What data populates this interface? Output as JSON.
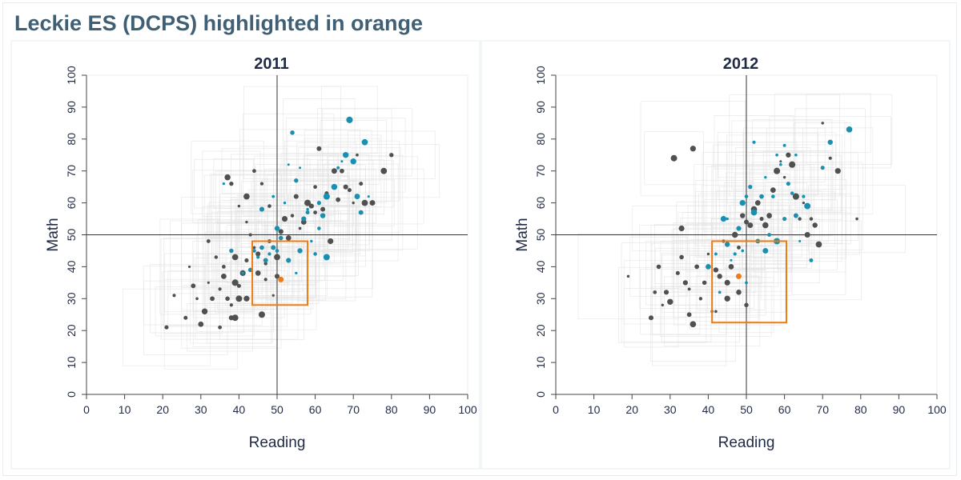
{
  "page": {
    "title": "Leckie ES (DCPS) highlighted in orange"
  },
  "colors": {
    "dcps": "#1a8fb0",
    "charter": "#505050",
    "highlight": "#f07b10",
    "box": "#e2e2e2"
  },
  "chart_data": [
    {
      "type": "scatter",
      "title": "2011",
      "xlabel": "Reading",
      "ylabel": "Math",
      "xlim": [
        0,
        100
      ],
      "ylim": [
        0,
        100
      ],
      "x_ticks": [
        "0",
        "10",
        "20",
        "30",
        "40",
        "50",
        "60",
        "70",
        "80",
        "90",
        "100"
      ],
      "y_ticks": [
        "0",
        "10",
        "20",
        "30",
        "40",
        "50",
        "60",
        "70",
        "80",
        "90",
        "100"
      ],
      "reference_lines": {
        "x": 50,
        "y": 50
      },
      "highlight": {
        "name": "Leckie ES",
        "x": 51,
        "y": 36,
        "x_range": [
          43.5,
          58
        ],
        "y_range": [
          28,
          48
        ]
      },
      "series": [
        {
          "points": [
            [
              21,
              21
            ],
            [
              23,
              31
            ],
            [
              26,
              24
            ],
            [
              27,
              40
            ],
            [
              29,
              30
            ],
            [
              30,
              22
            ],
            [
              31,
              26
            ],
            [
              32,
              35
            ],
            [
              33,
              30
            ],
            [
              34,
              43
            ],
            [
              35,
              21
            ],
            [
              35,
              33
            ],
            [
              36,
              37
            ],
            [
              37,
              30
            ],
            [
              38,
              28
            ],
            [
              38,
              24
            ],
            [
              39,
              43
            ],
            [
              39,
              24
            ],
            [
              40,
              34
            ],
            [
              40,
              30
            ],
            [
              41,
              38
            ],
            [
              42,
              42
            ],
            [
              42,
              54
            ],
            [
              43,
              50
            ],
            [
              44,
              46
            ],
            [
              45,
              38
            ],
            [
              45,
              44
            ],
            [
              46,
              25
            ],
            [
              47,
              41
            ],
            [
              48,
              48
            ],
            [
              48,
              59
            ],
            [
              49,
              46
            ],
            [
              50,
              43
            ],
            [
              51,
              51
            ],
            [
              52,
              55
            ],
            [
              53,
              49
            ],
            [
              54,
              56
            ],
            [
              55,
              62
            ],
            [
              56,
              52
            ],
            [
              57,
              54
            ],
            [
              58,
              60
            ],
            [
              59,
              59
            ],
            [
              60,
              65
            ],
            [
              60,
              57
            ],
            [
              61,
              77
            ],
            [
              62,
              58
            ],
            [
              62,
              56
            ],
            [
              63,
              63
            ],
            [
              64,
              48
            ],
            [
              65,
              70
            ],
            [
              66,
              61
            ],
            [
              67,
              70
            ],
            [
              68,
              65
            ],
            [
              69,
              64
            ],
            [
              70,
              60
            ],
            [
              71,
              75
            ],
            [
              72,
              66
            ],
            [
              73,
              60
            ],
            [
              75,
              60
            ],
            [
              78,
              70
            ],
            [
              80,
              75
            ],
            [
              37,
              68
            ],
            [
              38,
              66
            ],
            [
              40,
              59
            ],
            [
              42,
              62
            ],
            [
              44,
              70
            ],
            [
              46,
              66
            ],
            [
              47,
              36
            ],
            [
              49,
              31
            ],
            [
              32,
              48
            ],
            [
              36,
              40
            ],
            [
              39,
              35
            ],
            [
              42,
              30
            ],
            [
              50,
              37
            ],
            [
              28,
              34
            ]
          ]
        },
        {
          "points": [
            [
              36,
              66
            ],
            [
              38,
              45
            ],
            [
              41,
              38
            ],
            [
              43,
              39
            ],
            [
              44,
              45
            ],
            [
              45,
              43
            ],
            [
              46,
              46
            ],
            [
              47,
              42
            ],
            [
              48,
              44
            ],
            [
              49,
              46
            ],
            [
              50,
              52
            ],
            [
              51,
              49
            ],
            [
              52,
              60
            ],
            [
              53,
              72
            ],
            [
              54,
              82
            ],
            [
              55,
              67
            ],
            [
              56,
              71
            ],
            [
              57,
              55
            ],
            [
              58,
              58
            ],
            [
              59,
              48
            ],
            [
              60,
              44
            ],
            [
              61,
              60
            ],
            [
              62,
              56
            ],
            [
              63,
              62
            ],
            [
              65,
              65
            ],
            [
              66,
              71
            ],
            [
              67,
              73
            ],
            [
              68,
              75
            ],
            [
              69,
              86
            ],
            [
              70,
              73
            ],
            [
              71,
              62
            ],
            [
              72,
              57
            ],
            [
              73,
              79
            ],
            [
              74,
              62
            ],
            [
              50,
              45
            ],
            [
              53,
              42
            ],
            [
              55,
              38
            ],
            [
              56,
              45
            ],
            [
              58,
              57
            ],
            [
              61,
              52
            ],
            [
              63,
              43
            ],
            [
              46,
              58
            ],
            [
              49,
              62
            ]
          ]
        }
      ]
    },
    {
      "type": "scatter",
      "title": "2012",
      "xlabel": "Reading",
      "ylabel": "Math",
      "xlim": [
        0,
        100
      ],
      "ylim": [
        0,
        100
      ],
      "x_ticks": [
        "0",
        "10",
        "20",
        "30",
        "40",
        "50",
        "60",
        "70",
        "80",
        "90",
        "100"
      ],
      "y_ticks": [
        "0",
        "10",
        "20",
        "30",
        "40",
        "50",
        "60",
        "70",
        "80",
        "90",
        "100"
      ],
      "reference_lines": {
        "x": 50,
        "y": 50
      },
      "highlight": {
        "name": "Leckie ES",
        "x": 48,
        "y": 37,
        "x_range": [
          41,
          60.5
        ],
        "y_range": [
          22.5,
          48
        ]
      },
      "series": [
        {
          "points": [
            [
              19,
              37
            ],
            [
              25,
              24
            ],
            [
              26,
              32
            ],
            [
              27,
              40
            ],
            [
              28,
              28
            ],
            [
              29,
              32
            ],
            [
              30,
              29
            ],
            [
              31,
              74
            ],
            [
              32,
              38
            ],
            [
              33,
              43
            ],
            [
              34,
              35
            ],
            [
              35,
              33
            ],
            [
              36,
              22
            ],
            [
              37,
              40
            ],
            [
              38,
              30
            ],
            [
              39,
              35
            ],
            [
              40,
              44
            ],
            [
              41,
              26
            ],
            [
              42,
              39
            ],
            [
              43,
              37
            ],
            [
              44,
              48
            ],
            [
              45,
              35
            ],
            [
              46,
              40
            ],
            [
              47,
              50
            ],
            [
              48,
              46
            ],
            [
              49,
              56
            ],
            [
              50,
              54
            ],
            [
              51,
              53
            ],
            [
              52,
              58
            ],
            [
              53,
              60
            ],
            [
              54,
              55
            ],
            [
              55,
              53
            ],
            [
              56,
              56
            ],
            [
              57,
              64
            ],
            [
              58,
              70
            ],
            [
              59,
              73
            ],
            [
              60,
              68
            ],
            [
              61,
              75
            ],
            [
              62,
              72
            ],
            [
              63,
              62
            ],
            [
              64,
              55
            ],
            [
              65,
              60
            ],
            [
              66,
              50
            ],
            [
              67,
              55
            ],
            [
              68,
              53
            ],
            [
              69,
              47
            ],
            [
              70,
              85
            ],
            [
              72,
              74
            ],
            [
              74,
              70
            ],
            [
              79,
              55
            ],
            [
              42,
              26
            ],
            [
              45,
              30
            ],
            [
              36,
              77
            ],
            [
              33,
              52
            ],
            [
              50,
              28
            ],
            [
              35,
              25
            ],
            [
              48,
              32
            ],
            [
              40,
              40
            ]
          ]
        },
        {
          "points": [
            [
              40,
              40
            ],
            [
              42,
              44
            ],
            [
              43,
              32
            ],
            [
              44,
              55
            ],
            [
              45,
              47
            ],
            [
              46,
              42
            ],
            [
              47,
              44
            ],
            [
              48,
              52
            ],
            [
              49,
              45
            ],
            [
              50,
              62
            ],
            [
              51,
              65
            ],
            [
              52,
              57
            ],
            [
              53,
              48
            ],
            [
              54,
              62
            ],
            [
              55,
              45
            ],
            [
              56,
              50
            ],
            [
              57,
              62
            ],
            [
              58,
              75
            ],
            [
              59,
              72
            ],
            [
              60,
              78
            ],
            [
              61,
              66
            ],
            [
              62,
              63
            ],
            [
              63,
              56
            ],
            [
              64,
              48
            ],
            [
              65,
              62
            ],
            [
              66,
              59
            ],
            [
              67,
              42
            ],
            [
              70,
              71
            ],
            [
              72,
              79
            ],
            [
              77,
              83
            ],
            [
              52,
              79
            ],
            [
              50,
              35
            ],
            [
              58,
              48
            ],
            [
              45,
              55
            ],
            [
              49,
              60
            ],
            [
              55,
              68
            ],
            [
              60,
              55
            ],
            [
              63,
              75
            ]
          ]
        }
      ]
    }
  ]
}
